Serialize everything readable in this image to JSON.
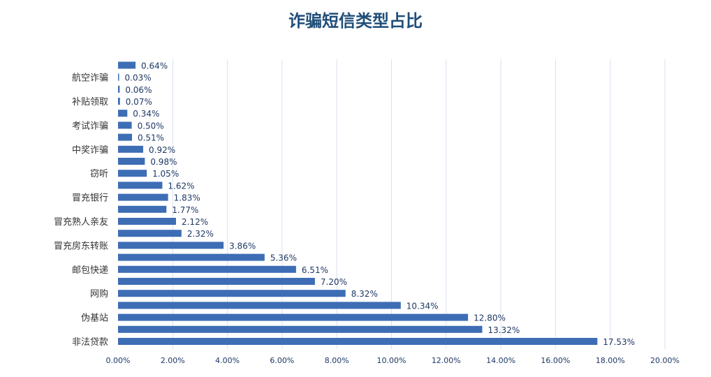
{
  "chart_data": {
    "type": "bar",
    "orientation": "horizontal",
    "title": "诈骗短信类型占比",
    "values": [
      17.53,
      13.32,
      12.8,
      10.34,
      8.32,
      7.2,
      6.51,
      5.36,
      3.86,
      2.32,
      2.12,
      1.77,
      1.83,
      1.62,
      1.05,
      0.98,
      0.92,
      0.51,
      0.5,
      0.34,
      0.07,
      0.06,
      0.03,
      0.64
    ],
    "value_labels": [
      "17.53%",
      "13.32%",
      "12.80%",
      "10.34%",
      "8.32%",
      "7.20%",
      "6.51%",
      "5.36%",
      "3.86%",
      "2.32%",
      "2.12%",
      "1.77%",
      "1.83%",
      "1.62%",
      "1.05%",
      "0.98%",
      "0.92%",
      "0.51%",
      "0.50%",
      "0.34%",
      "0.07%",
      "0.06%",
      "0.03%",
      "0.64%"
    ],
    "category_labels": [
      "非法贷款",
      "",
      "伪基站",
      "",
      "网购",
      "",
      "邮包快递",
      "",
      "冒充房东转账",
      "",
      "冒充熟人亲友",
      "",
      "冒充银行",
      "",
      "窃听",
      "",
      "中奖诈骗",
      "",
      "考试诈骗",
      "",
      "补贴领取",
      "",
      "航空诈骗",
      ""
    ],
    "xlim": [
      0,
      20
    ],
    "xticks": [
      "0.00%",
      "2.00%",
      "4.00%",
      "6.00%",
      "8.00%",
      "10.00%",
      "12.00%",
      "14.00%",
      "16.00%",
      "18.00%",
      "20.00%"
    ],
    "grid": true,
    "bar_color": "#3D6DB5",
    "gridline_color": "#D9E2F1",
    "title_color": "#1F4E79"
  }
}
